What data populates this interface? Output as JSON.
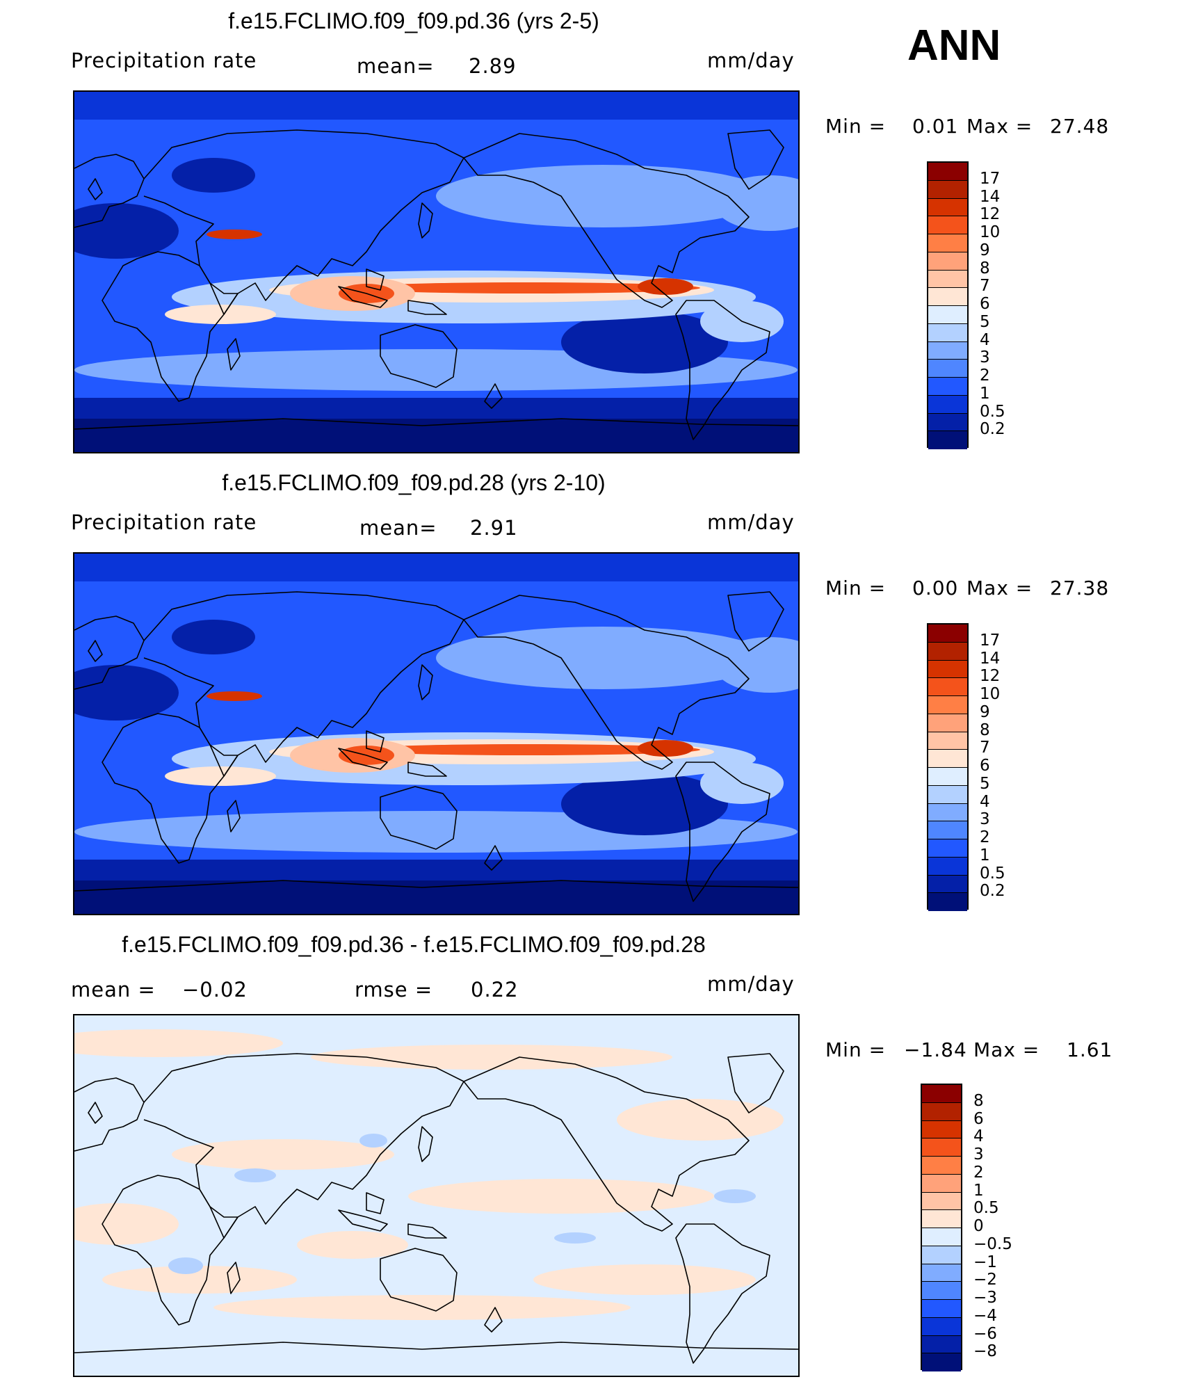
{
  "season": "ANN",
  "panels": [
    {
      "title": "f.e15.FCLIMO.f09_f09.pd.36 (yrs 2-5)",
      "left_label": "Precipitation  rate",
      "center_label": "mean=",
      "center_value": "2.89",
      "units": "mm/day",
      "min_label": "Min  =",
      "min_value": "0.01",
      "max_label": "Max  =",
      "max_value": "27.48",
      "levels": [
        "17",
        "14",
        "12",
        "10",
        "9",
        "8",
        "7",
        "6",
        "5",
        "4",
        "3",
        "2",
        "1",
        "0.5",
        "0.2"
      ],
      "colors": [
        "#8b0000",
        "#b22200",
        "#d63300",
        "#f4531b",
        "#ff7f45",
        "#ffa27a",
        "#ffc4a6",
        "#ffe6d5",
        "#dfeeff",
        "#b3d1ff",
        "#80acff",
        "#4f86ff",
        "#2258ff",
        "#0a35d8",
        "#0420a8",
        "#001078"
      ],
      "variant": "model"
    },
    {
      "title": "f.e15.FCLIMO.f09_f09.pd.28 (yrs 2-10)",
      "left_label": "Precipitation  rate",
      "center_label": "mean=",
      "center_value": "2.91",
      "units": "mm/day",
      "min_label": "Min  =",
      "min_value": "0.00",
      "max_label": "Max  =",
      "max_value": "27.38",
      "levels": [
        "17",
        "14",
        "12",
        "10",
        "9",
        "8",
        "7",
        "6",
        "5",
        "4",
        "3",
        "2",
        "1",
        "0.5",
        "0.2"
      ],
      "colors": [
        "#8b0000",
        "#b22200",
        "#d63300",
        "#f4531b",
        "#ff7f45",
        "#ffa27a",
        "#ffc4a6",
        "#ffe6d5",
        "#dfeeff",
        "#b3d1ff",
        "#80acff",
        "#4f86ff",
        "#2258ff",
        "#0a35d8",
        "#0420a8",
        "#001078"
      ],
      "variant": "model"
    },
    {
      "title": "f.e15.FCLIMO.f09_f09.pd.36 - f.e15.FCLIMO.f09_f09.pd.28",
      "left_label": "mean  =",
      "left_value": "−0.02",
      "center_label": "rmse  =",
      "center_value": "0.22",
      "units": "mm/day",
      "min_label": "Min  =",
      "min_value": "−1.84",
      "max_label": "Max  =",
      "max_value": "1.61",
      "levels": [
        "8",
        "6",
        "4",
        "3",
        "2",
        "1",
        "0.5",
        "0",
        "−0.5",
        "−1",
        "−2",
        "−3",
        "−4",
        "−6",
        "−8"
      ],
      "colors": [
        "#8b0000",
        "#b22200",
        "#d63300",
        "#f4531b",
        "#ff7f45",
        "#ffa27a",
        "#ffc4a6",
        "#ffe6d5",
        "#dfeeff",
        "#b3d1ff",
        "#80acff",
        "#4f86ff",
        "#2258ff",
        "#0a35d8",
        "#0420a8",
        "#001078"
      ],
      "variant": "diff"
    }
  ]
}
